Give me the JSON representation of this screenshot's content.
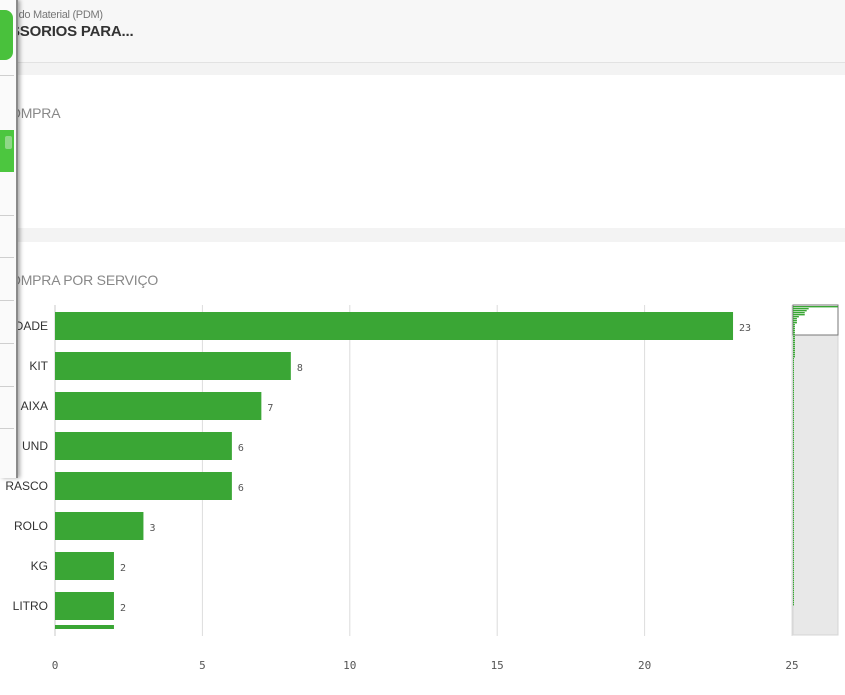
{
  "header": {
    "subtitle": "e do Material (PDM)",
    "title": "SSORIOS PARA..."
  },
  "panel1": {
    "title": "OMPRA"
  },
  "panel2": {
    "title": "OMPRA POR SERVIÇO"
  },
  "colors": {
    "bar": "#3aa635",
    "grid": "#dcdcdc",
    "sidebar_green": "#49c13c"
  },
  "chart_data": {
    "type": "bar",
    "orientation": "horizontal",
    "title": "OMPRA POR SERVIÇO",
    "categories": [
      "DADE",
      "KIT",
      "AIXA",
      "UND",
      "RASCO",
      "ROLO",
      "KG",
      "LITRO"
    ],
    "values": [
      23,
      8,
      7,
      6,
      6,
      3,
      2,
      2
    ],
    "x_ticks": [
      0,
      5,
      10,
      15,
      20,
      25
    ],
    "xlim": [
      0,
      25
    ],
    "grid": true,
    "scrollbar_navigator": true
  }
}
